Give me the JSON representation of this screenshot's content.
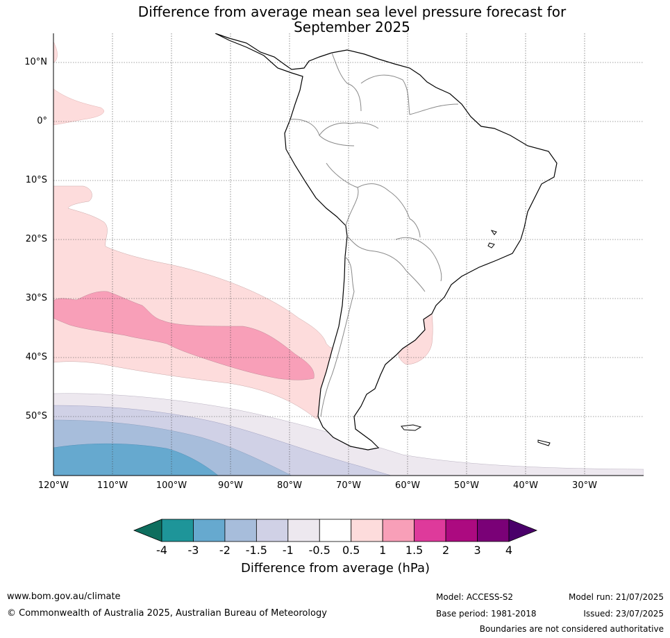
{
  "title_line1": "Difference from average mean sea level pressure forecast for",
  "title_line2": "September 2025",
  "lat_labels": [
    "10°N",
    "0°",
    "10°S",
    "20°S",
    "30°S",
    "40°S",
    "50°S"
  ],
  "lon_labels": [
    "120°W",
    "110°W",
    "100°W",
    "90°W",
    "80°W",
    "70°W",
    "60°W",
    "50°W",
    "40°W",
    "30°W"
  ],
  "colorbar": {
    "title": "Difference from average (hPa)",
    "labels": [
      "-4",
      "-3",
      "-2",
      "-1.5",
      "-1",
      "-0.5",
      "0.5",
      "1",
      "1.5",
      "2",
      "3",
      "4"
    ],
    "colors": [
      "#0e6e5e",
      "#1e9599",
      "#66a9cf",
      "#a7bddb",
      "#d0d1e6",
      "#ede8ef",
      "#ffffff",
      "#fddcdc",
      "#f89fb8",
      "#de3a9b",
      "#ac0a80",
      "#7a0177",
      "#4a006a"
    ]
  },
  "footer": {
    "site": "www.bom.gov.au/climate",
    "copyright": "© Commonwealth of Australia 2025, Australian Bureau of Meteorology",
    "model": "Model: ACCESS-S2",
    "base_period": "Base period: 1981-2018",
    "model_run": "Model run: 21/07/2025",
    "issued": "Issued: 23/07/2025",
    "disclaimer": "Boundaries are not considered authoritative"
  }
}
